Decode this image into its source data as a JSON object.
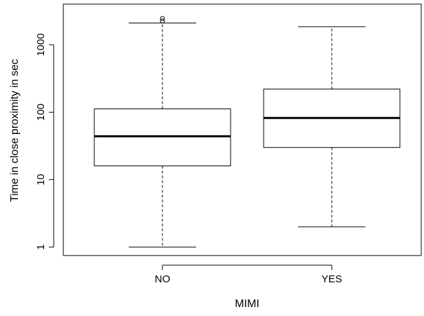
{
  "chart_data": {
    "type": "boxplot",
    "title": "",
    "xlabel": "MIMI",
    "ylabel": "Time in close proximity in sec",
    "y_scale": "log10",
    "ylim": [
      0.75,
      4000
    ],
    "yticks": [
      1,
      10,
      100,
      1000
    ],
    "ytick_labels": [
      "1",
      "10",
      "100",
      "1000"
    ],
    "grid": false,
    "categories": [
      "NO",
      "YES"
    ],
    "series": [
      {
        "category": "NO",
        "whisker_low": 1,
        "q1": 16,
        "median": 44,
        "q3": 112,
        "whisker_high": 2100,
        "outliers": [
          2250,
          2450
        ]
      },
      {
        "category": "YES",
        "whisker_low": 2,
        "q1": 30,
        "median": 82,
        "q3": 220,
        "whisker_high": 1850,
        "outliers": []
      }
    ]
  }
}
